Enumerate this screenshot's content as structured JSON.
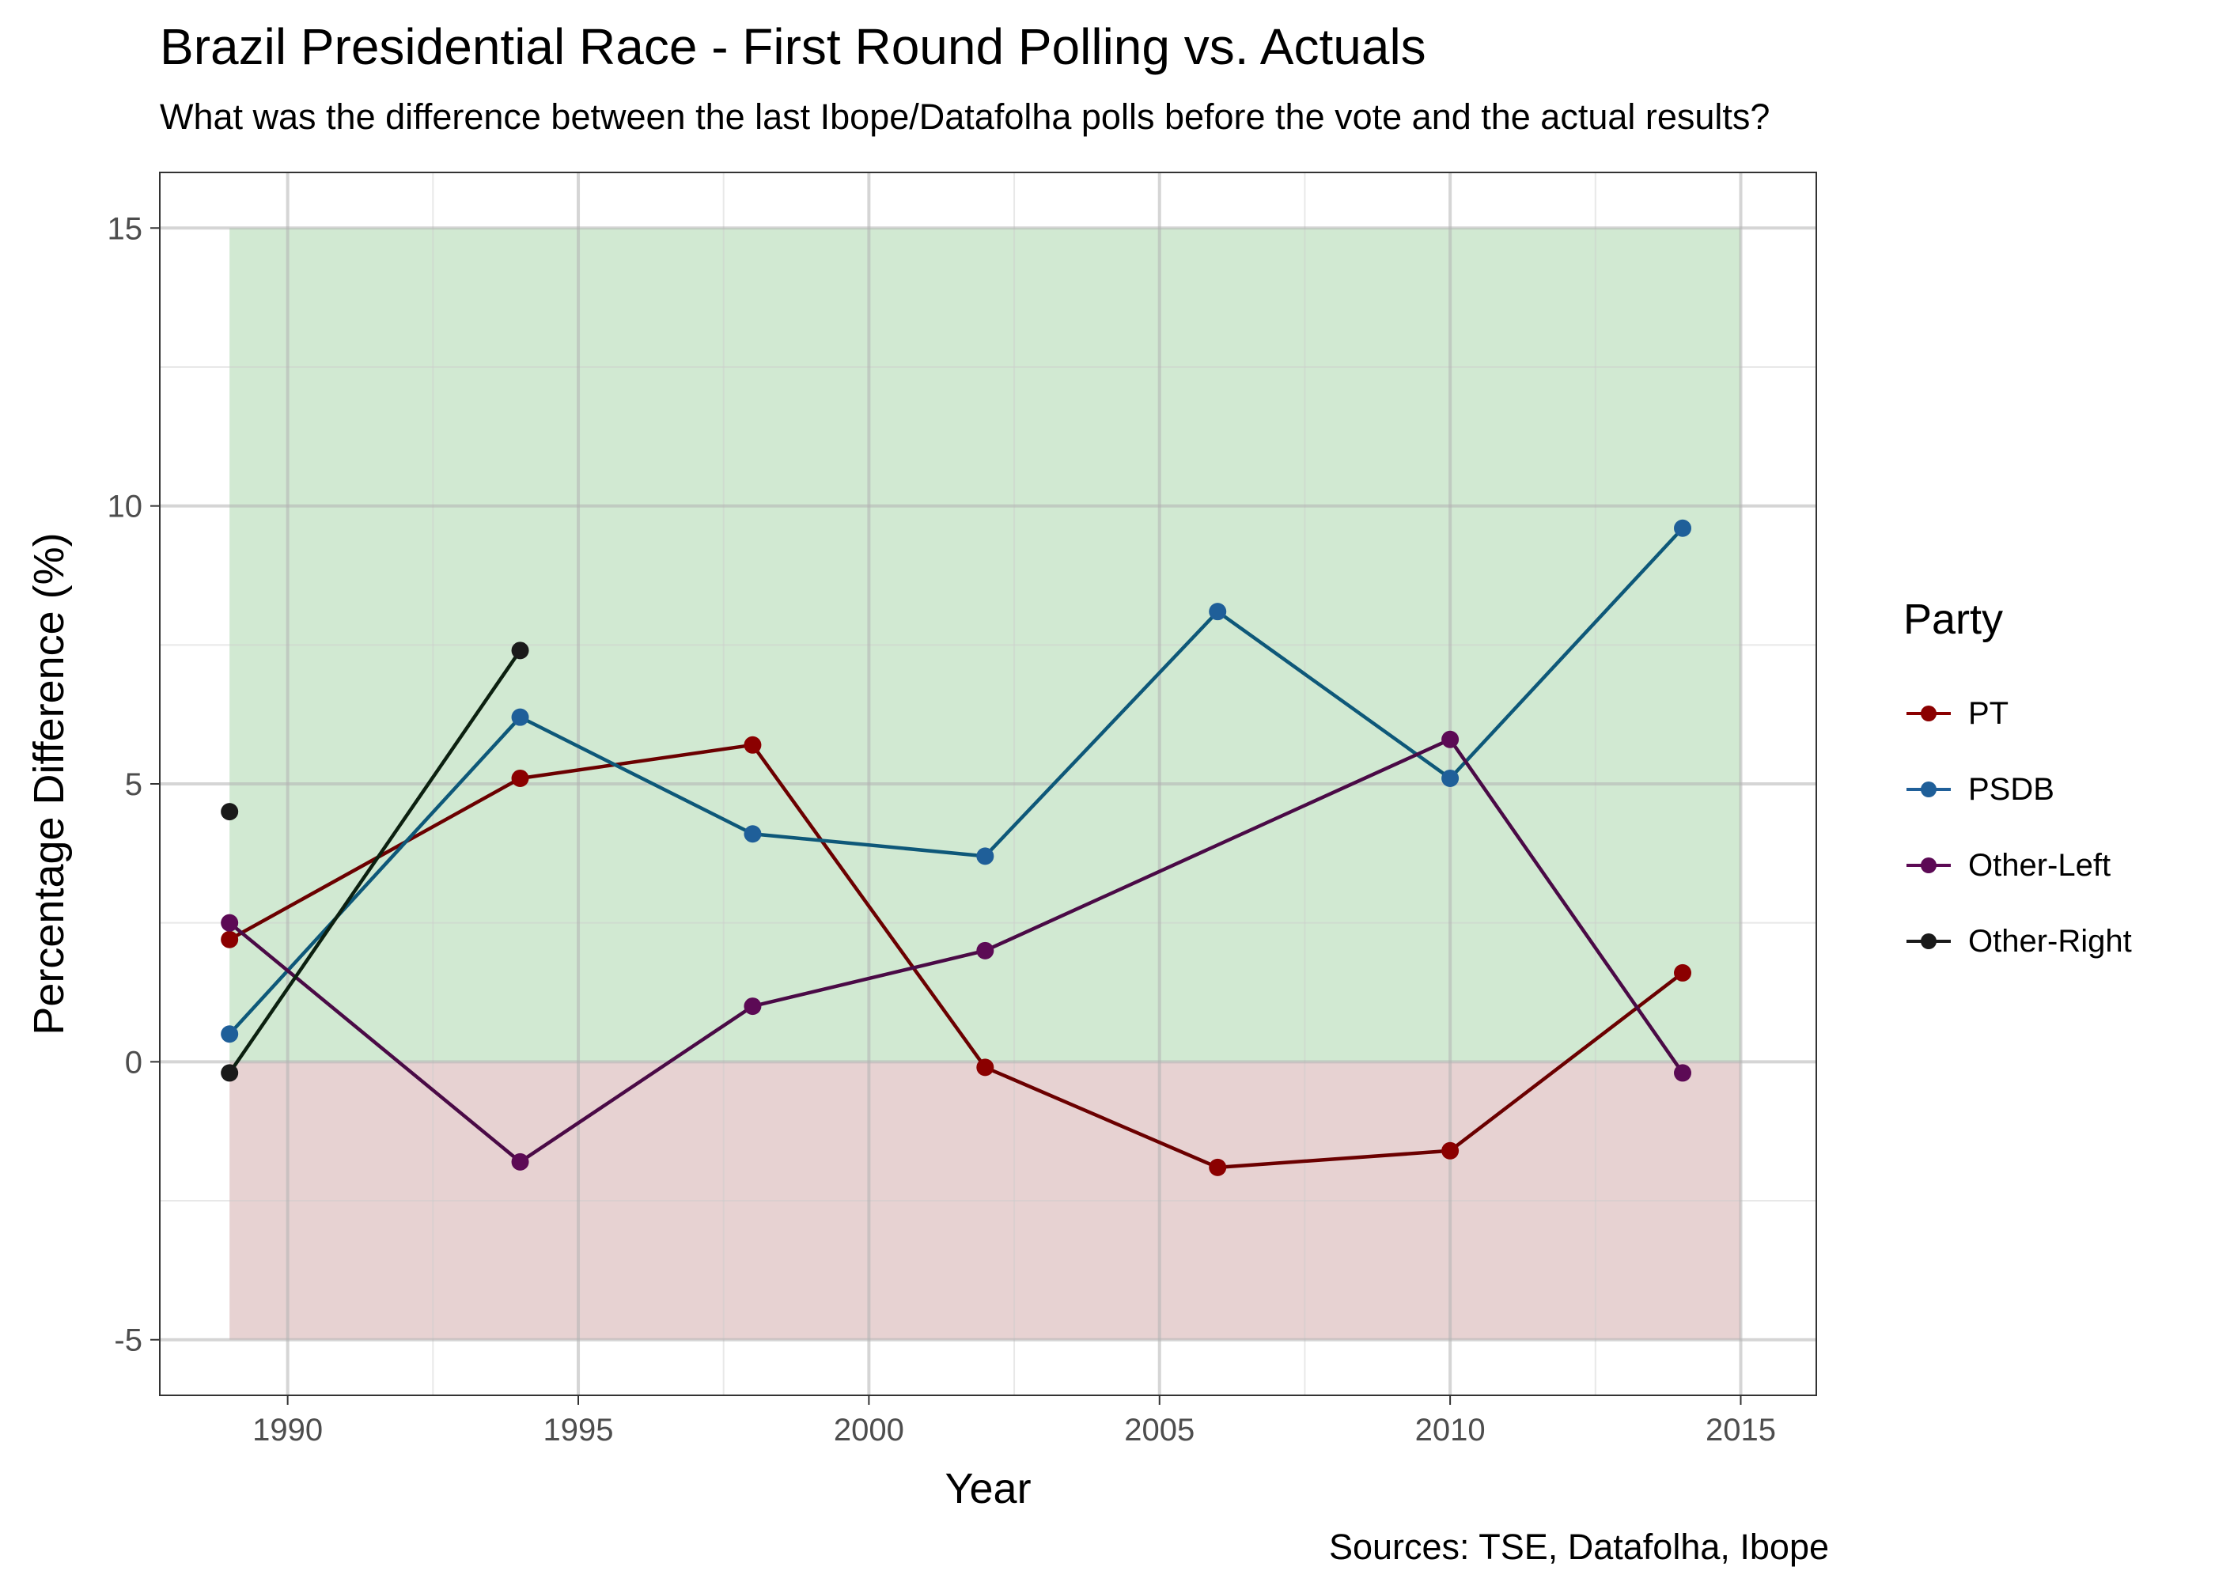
{
  "title": "Brazil Presidential Race - First Round Polling vs. Actuals",
  "subtitle": "What was the difference between the last Ibope/Datafolha polls before the vote and the actual results?",
  "caption": "Sources: TSE, Datafolha, Ibope",
  "chart_data": {
    "type": "line",
    "xlabel": "Year",
    "ylabel": "Percentage Difference (%)",
    "xlim": [
      1987.8,
      2016.3
    ],
    "ylim": [
      -6,
      16
    ],
    "x_ticks": [
      1990,
      1995,
      2000,
      2005,
      2010,
      2015
    ],
    "y_ticks": [
      -5,
      0,
      5,
      10,
      15
    ],
    "grid": true,
    "legend_position": "right",
    "legend_title": "Party",
    "shaded_regions": [
      {
        "x": [
          1989,
          2015
        ],
        "y": [
          0,
          15
        ],
        "color": "#d1e9d2"
      },
      {
        "x": [
          1989,
          2015
        ],
        "y": [
          -5,
          0
        ],
        "color": "#e7d2d2"
      }
    ],
    "series": [
      {
        "name": "PT",
        "color": "#6b0000",
        "point_color": "#8b0000",
        "points": [
          [
            1989,
            2.2
          ],
          [
            1994,
            5.1
          ],
          [
            1998,
            5.7
          ],
          [
            2002,
            -0.1
          ],
          [
            2006,
            -1.9
          ],
          [
            2010,
            -1.6
          ],
          [
            2014,
            1.6
          ]
        ]
      },
      {
        "name": "PSDB",
        "color": "#0e5879",
        "point_color": "#1f5f99",
        "points": [
          [
            1989,
            0.5
          ],
          [
            1994,
            6.2
          ],
          [
            1998,
            4.1
          ],
          [
            2002,
            3.7
          ],
          [
            2006,
            8.1
          ],
          [
            2010,
            5.1
          ],
          [
            2014,
            9.6
          ]
        ]
      },
      {
        "name": "Other-Left",
        "color": "#4a0a46",
        "point_color": "#5c0a55",
        "points": [
          [
            1989,
            2.5
          ],
          [
            1994,
            -1.8
          ],
          [
            1998,
            1.0
          ],
          [
            2002,
            2.0
          ],
          [
            2010,
            5.8
          ],
          [
            2014,
            -0.2
          ]
        ]
      },
      {
        "name": "Other-Right",
        "color": "#0c2010",
        "point_color": "#1a1a1a",
        "points": [
          [
            1989,
            -0.2
          ],
          [
            1994,
            7.4
          ]
        ],
        "extra_points": [
          [
            1989,
            4.5
          ]
        ]
      }
    ]
  }
}
